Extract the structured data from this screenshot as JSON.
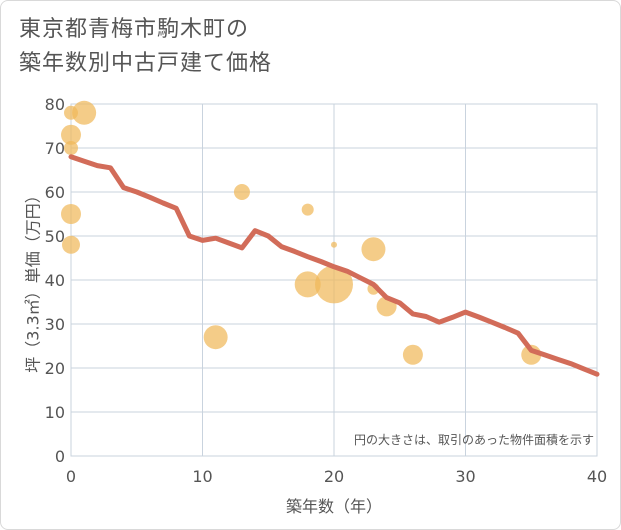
{
  "title_lines": [
    "東京都青梅市駒木町の",
    "築年数別中古戸建て価格"
  ],
  "chart_data": {
    "type": "scatter",
    "title": "東京都青梅市駒木町の築年数別中古戸建て価格",
    "xlabel": "築年数（年）",
    "ylabel": "坪（3.3㎡）単価（万円）",
    "xlim": [
      0,
      40
    ],
    "ylim": [
      0,
      80
    ],
    "xticks": [
      0,
      10,
      20,
      30,
      40
    ],
    "yticks": [
      0,
      10,
      20,
      30,
      40,
      50,
      60,
      70,
      80
    ],
    "note": "円の大きさは、取引のあった物件面積を示す",
    "bubble_color": "#f0b95a",
    "line_color": "#d26c59",
    "points": [
      {
        "x": 0,
        "y": 78,
        "s": 7
      },
      {
        "x": 0,
        "y": 73,
        "s": 10
      },
      {
        "x": 0,
        "y": 70,
        "s": 7
      },
      {
        "x": 0,
        "y": 55,
        "s": 10
      },
      {
        "x": 0,
        "y": 48,
        "s": 9
      },
      {
        "x": 1,
        "y": 78,
        "s": 12
      },
      {
        "x": 11,
        "y": 27,
        "s": 12
      },
      {
        "x": 13,
        "y": 60,
        "s": 8
      },
      {
        "x": 18,
        "y": 56,
        "s": 6
      },
      {
        "x": 18,
        "y": 39,
        "s": 13
      },
      {
        "x": 20,
        "y": 48,
        "s": 3
      },
      {
        "x": 20,
        "y": 39,
        "s": 19
      },
      {
        "x": 23,
        "y": 47,
        "s": 12
      },
      {
        "x": 23,
        "y": 38,
        "s": 6
      },
      {
        "x": 24,
        "y": 34,
        "s": 10
      },
      {
        "x": 26,
        "y": 23,
        "s": 10
      },
      {
        "x": 35,
        "y": 23,
        "s": 10
      }
    ],
    "trend": {
      "x": [
        0,
        1,
        2,
        3,
        4,
        5,
        6,
        7,
        8,
        9,
        10,
        11,
        12,
        13,
        14,
        15,
        16,
        17,
        18,
        19,
        20,
        21,
        22,
        23,
        24,
        25,
        26,
        27,
        28,
        29,
        30,
        31,
        32,
        33,
        34,
        35,
        36,
        37,
        38,
        39,
        40
      ],
      "y": [
        68,
        67,
        66,
        65.5,
        61,
        60,
        58.8,
        57.5,
        56.3,
        50,
        49,
        49.5,
        48.4,
        47.3,
        51.2,
        50,
        47.6,
        46.5,
        45.3,
        44.2,
        43,
        42,
        40.5,
        39,
        36,
        34.8,
        32.3,
        31.7,
        30.4,
        31.5,
        32.7,
        31.6,
        30.4,
        29.2,
        27.9,
        24,
        23,
        22,
        21,
        19.8,
        18.6
      ]
    }
  }
}
